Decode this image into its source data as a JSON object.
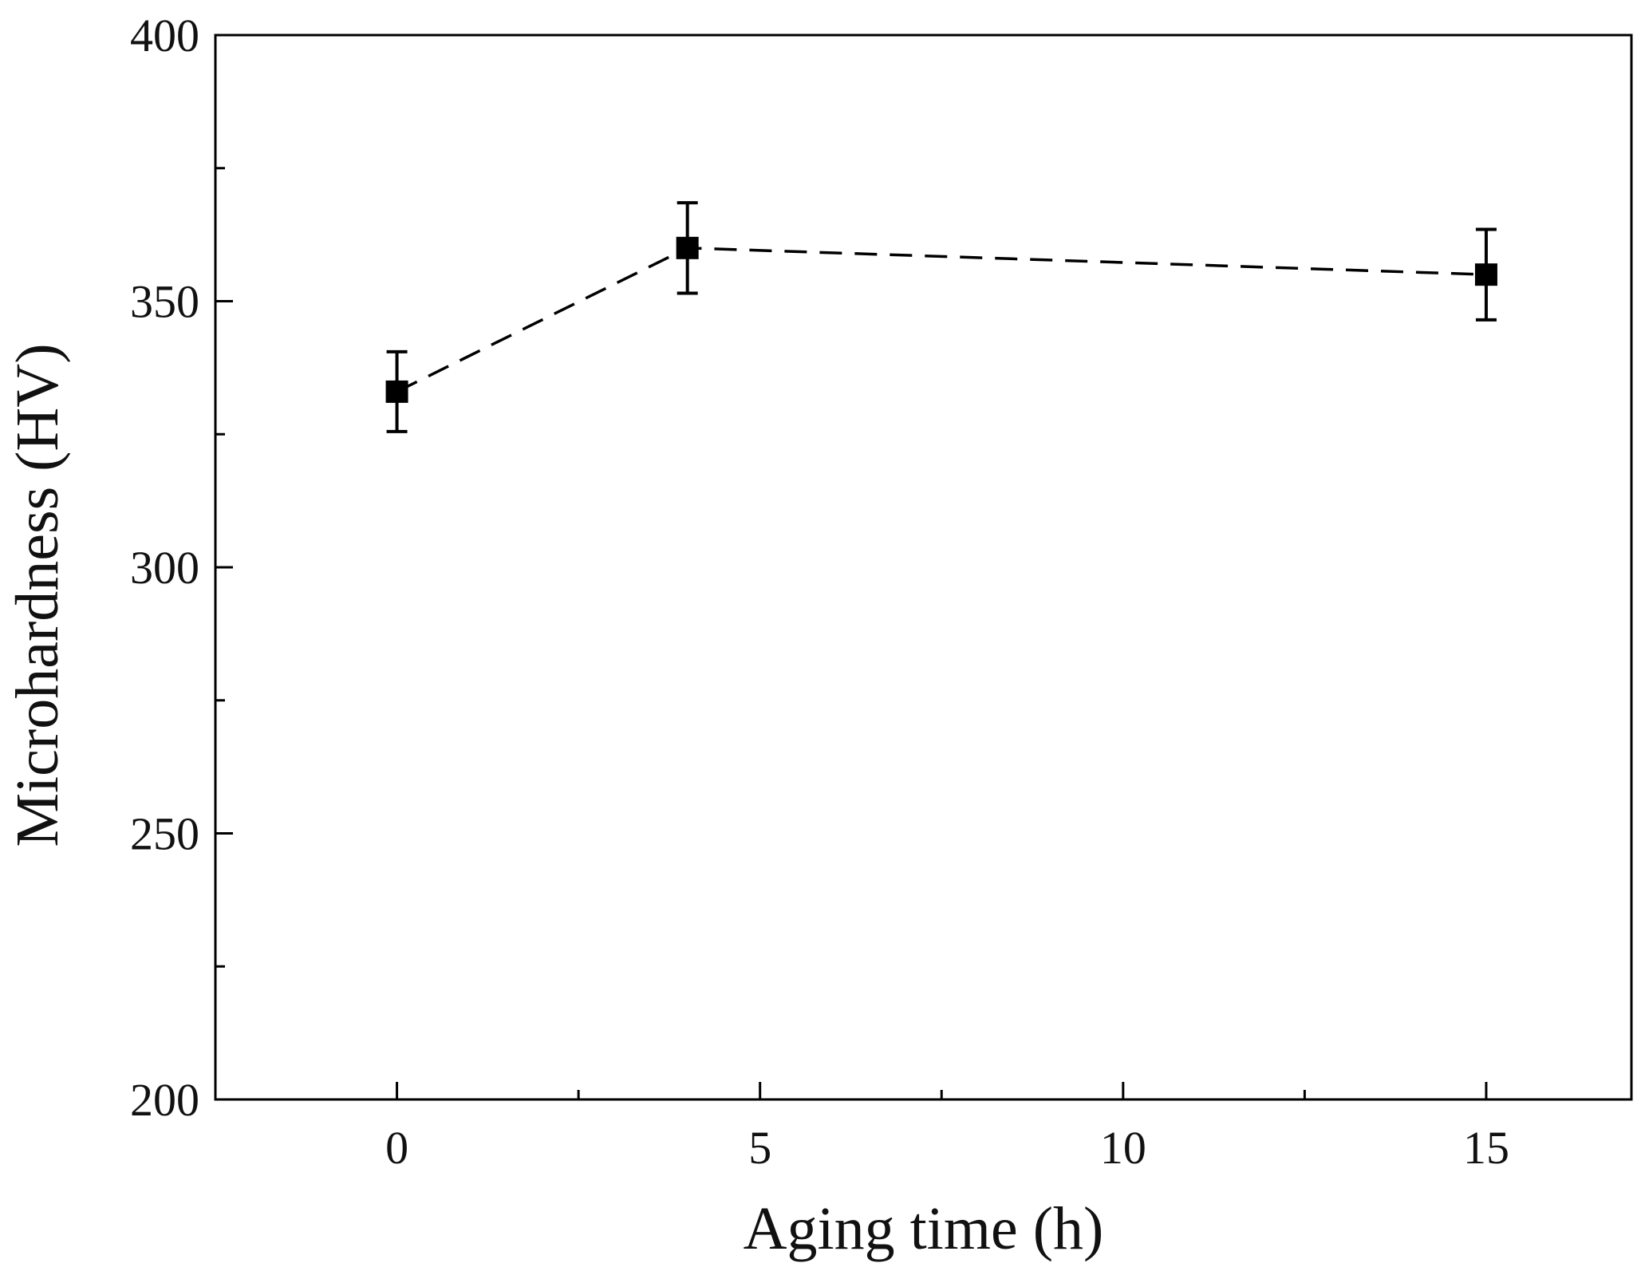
{
  "chart_data": {
    "type": "scatter",
    "title": "",
    "xlabel": "Aging time (h)",
    "ylabel": "Microhardness (HV)",
    "xlim": [
      -2.5,
      17
    ],
    "ylim": [
      200,
      400
    ],
    "x_major_ticks": [
      0,
      5,
      10,
      15
    ],
    "x_minor_ticks": [
      2.5,
      7.5,
      12.5
    ],
    "y_major_ticks": [
      200,
      250,
      300,
      350,
      400
    ],
    "y_minor_ticks": [
      225,
      275,
      325,
      375
    ],
    "x_tick_labels": [
      "0",
      "5",
      "10",
      "15"
    ],
    "y_tick_labels": [
      "200",
      "250",
      "300",
      "350",
      "400"
    ],
    "grid": false,
    "series": [
      {
        "name": "Microhardness",
        "x": [
          0,
          4,
          15
        ],
        "y": [
          333,
          360,
          355
        ],
        "error": [
          7.5,
          8.5,
          8.5
        ],
        "line_style": "dashed",
        "marker": "square",
        "color": "#000000"
      }
    ]
  }
}
